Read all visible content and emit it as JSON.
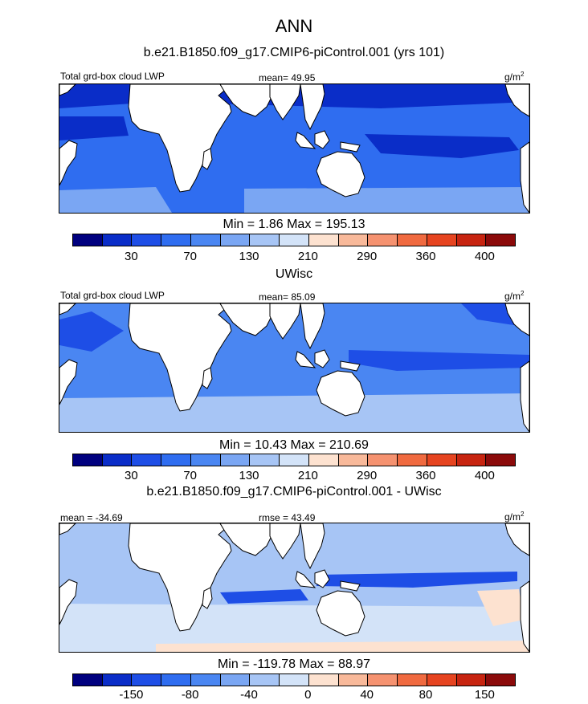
{
  "title": "ANN",
  "panels": [
    {
      "subtitle": "b.e21.B1850.f09_g17.CMIP6-piControl.001 (yrs 101)",
      "left_label": "Total grd-box cloud LWP",
      "center_label": "mean=  49.95",
      "units_base": "g/m",
      "units_exp": "2",
      "minmax": "Min =   1.86 Max = 195.13",
      "colorbar_ticks": [
        "30",
        "70",
        "130",
        "210",
        "290",
        "360",
        "400"
      ]
    },
    {
      "subtitle": "UWisc",
      "left_label": "Total grd-box cloud LWP",
      "center_label": "mean=  85.09",
      "units_base": "g/m",
      "units_exp": "2",
      "minmax": "Min =  10.43 Max = 210.69",
      "colorbar_ticks": [
        "30",
        "70",
        "130",
        "210",
        "290",
        "360",
        "400"
      ]
    },
    {
      "subtitle": "b.e21.B1850.f09_g17.CMIP6-piControl.001 - UWisc",
      "left_label": "mean = -34.69",
      "center_label": "rmse =  43.49",
      "units_base": "g/m",
      "units_exp": "2",
      "minmax": "Min = -119.78 Max =  88.97",
      "colorbar_ticks": [
        "-150",
        "-80",
        "-40",
        "0",
        "40",
        "80",
        "150"
      ]
    }
  ],
  "colorbar_colors": [
    "#00007f",
    "#0a2dc8",
    "#1e4ee6",
    "#2f6df0",
    "#4a86f2",
    "#7aa6f3",
    "#a7c5f5",
    "#d3e3f8",
    "#fde2d0",
    "#f8b99a",
    "#f59270",
    "#f06a40",
    "#e64420",
    "#c72410",
    "#8b0a0a"
  ],
  "map_colors": {
    "land": "#ffffff",
    "coast": "#000000",
    "panel1_ocean": "#2f6df0",
    "panel1_dark": "#0a2dc8",
    "panel1_light": "#7aa6f3",
    "panel2_ocean": "#4a86f2",
    "panel2_dark": "#1e4ee6",
    "panel2_light": "#a7c5f5",
    "panel3_ocean": "#a7c5f5",
    "panel3_dark": "#1e4ee6",
    "panel3_light": "#d3e3f8",
    "panel3_warm": "#fde2d0"
  }
}
